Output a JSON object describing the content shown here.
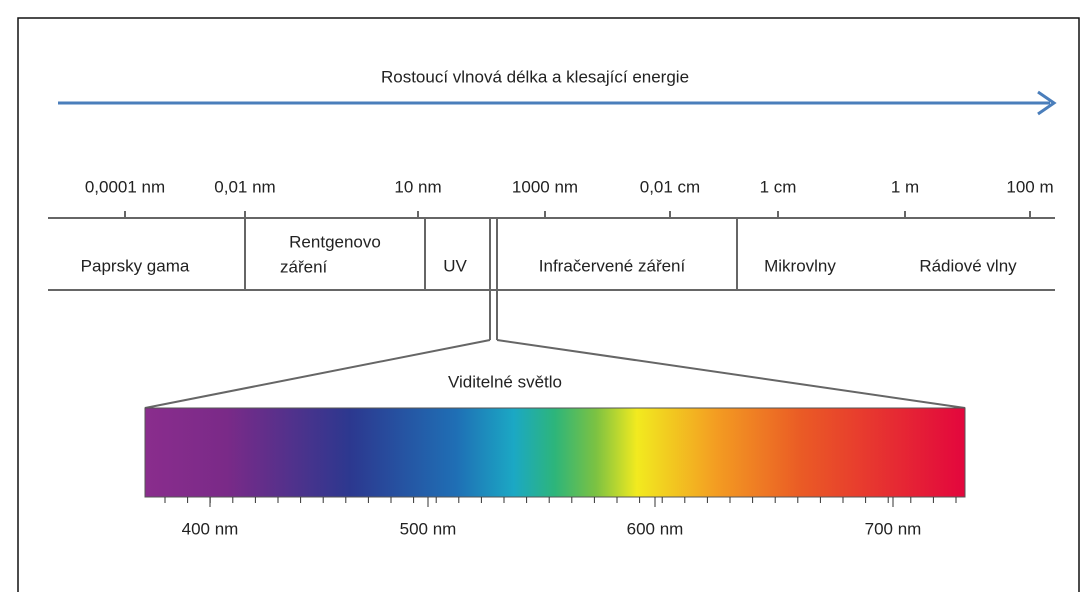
{
  "header": {
    "title": "Rostoucí vlnová délka a klesající energie"
  },
  "scale": [
    "0,0001 nm",
    "0,01 nm",
    "10 nm",
    "1000 nm",
    "0,01 cm",
    "1 cm",
    "1 m",
    "100 m"
  ],
  "regions": [
    [
      "Paprsky gama"
    ],
    [
      "Rentgenovo",
      "záření"
    ],
    [
      "UV"
    ],
    [
      "Infračervené záření"
    ],
    [
      "Mikrovlny"
    ],
    [
      "Rádiové vlny"
    ]
  ],
  "visible": {
    "label": "Viditelné světlo",
    "ticks": [
      "400 nm",
      "500 nm",
      "600 nm",
      "700 nm"
    ]
  }
}
